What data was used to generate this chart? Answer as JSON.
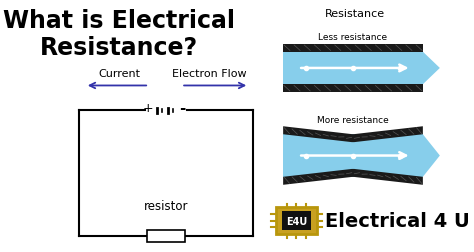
{
  "bg_color": "#ffffff",
  "title_text": "What is Electrical\nResistance?",
  "title_color": "#000000",
  "circuit_color": "#000000",
  "current_label": "Current",
  "electron_label": "Electron Flow",
  "arrow_color": "#3333aa",
  "resistor_label": "resistor",
  "resistance_label": "Resistance",
  "less_resistance_label": "Less resistance",
  "more_resistance_label": "More resistance",
  "e4u_label": "Electrical 4 U",
  "light_blue": "#87ceeb",
  "dark_stripe": "#1a1a1a",
  "chip_bg": "#c8a020",
  "chip_border": "#b8960c"
}
